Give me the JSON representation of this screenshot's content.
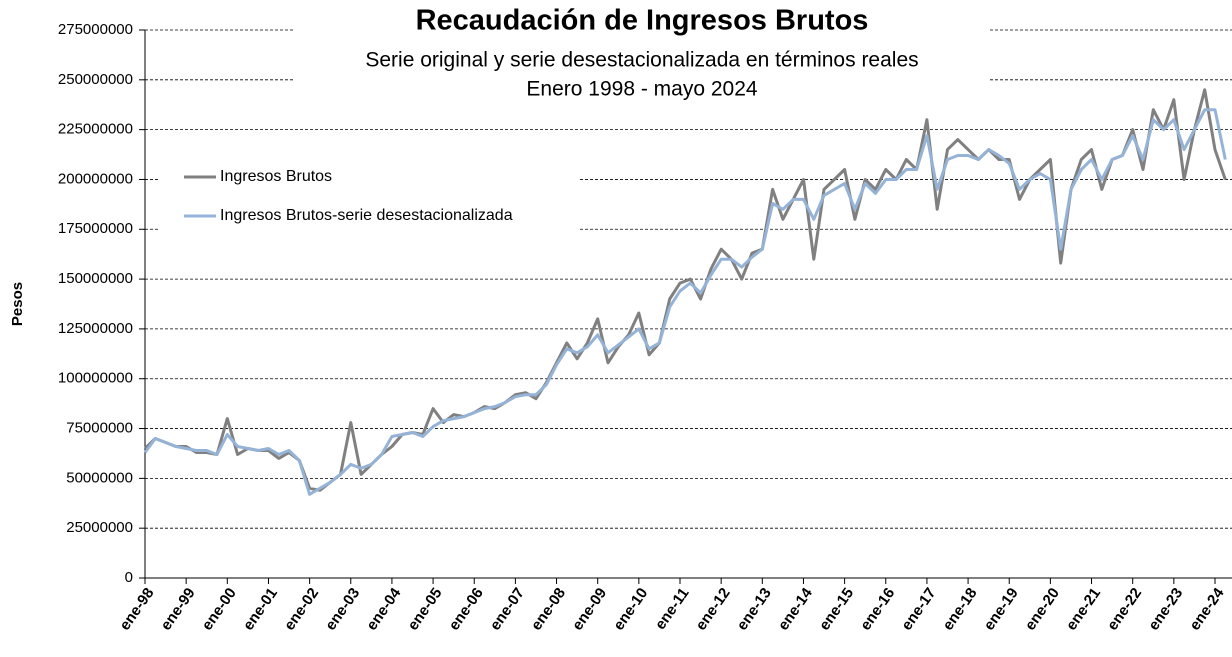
{
  "chart_data": {
    "type": "line",
    "title": "Recaudación de Ingresos Brutos",
    "subtitle": [
      "Serie original y serie desestacionalizada  en términos reales",
      "Enero 1998 - mayo 2024"
    ],
    "y_label": "Pesos",
    "categories": [
      "ene-98",
      null,
      null,
      null,
      "ene-99",
      null,
      null,
      null,
      "ene-00",
      null,
      null,
      null,
      "ene-01",
      null,
      null,
      null,
      "ene-02",
      null,
      null,
      null,
      "ene-03",
      null,
      null,
      null,
      "ene-04",
      null,
      null,
      null,
      "ene-05",
      null,
      null,
      null,
      "ene-06",
      null,
      null,
      null,
      "ene-07",
      null,
      null,
      null,
      "ene-08",
      null,
      null,
      null,
      "ene-09",
      null,
      null,
      null,
      "ene-10",
      null,
      null,
      null,
      "ene-11",
      null,
      null,
      null,
      "ene-12",
      null,
      null,
      null,
      "ene-13",
      null,
      null,
      null,
      "ene-14",
      null,
      null,
      null,
      "ene-15",
      null,
      null,
      null,
      "ene-16",
      null,
      null,
      null,
      "ene-17",
      null,
      null,
      null,
      "ene-18",
      null,
      null,
      null,
      "ene-19",
      null,
      null,
      null,
      "ene-20",
      null,
      null,
      null,
      "ene-21",
      null,
      null,
      null,
      "ene-22",
      null,
      null,
      null,
      "ene-23",
      null,
      null,
      null,
      "ene-24",
      null
    ],
    "series": [
      {
        "name": "Ingresos Brutos",
        "color": "#808080",
        "values": [
          65000000,
          70000000,
          68000000,
          66000000,
          66000000,
          63000000,
          63000000,
          62000000,
          80000000,
          62000000,
          65000000,
          64000000,
          64000000,
          60000000,
          63000000,
          59000000,
          45000000,
          44000000,
          48000000,
          52000000,
          78000000,
          52000000,
          57000000,
          62000000,
          66000000,
          72000000,
          73000000,
          72000000,
          85000000,
          78000000,
          82000000,
          81000000,
          83000000,
          86000000,
          85000000,
          88000000,
          92000000,
          93000000,
          90000000,
          98000000,
          108000000,
          118000000,
          110000000,
          118000000,
          130000000,
          108000000,
          116000000,
          122000000,
          133000000,
          112000000,
          118000000,
          140000000,
          148000000,
          150000000,
          140000000,
          155000000,
          165000000,
          160000000,
          150000000,
          163000000,
          165000000,
          195000000,
          180000000,
          190000000,
          200000000,
          160000000,
          195000000,
          200000000,
          205000000,
          180000000,
          200000000,
          195000000,
          205000000,
          200000000,
          210000000,
          205000000,
          230000000,
          185000000,
          215000000,
          220000000,
          215000000,
          210000000,
          215000000,
          210000000,
          210000000,
          190000000,
          200000000,
          205000000,
          210000000,
          158000000,
          195000000,
          210000000,
          215000000,
          195000000,
          210000000,
          212000000,
          225000000,
          205000000,
          235000000,
          225000000,
          240000000,
          200000000,
          225000000,
          245000000,
          215000000,
          200000000
        ]
      },
      {
        "name": "Ingresos Brutos-serie desestacionalizada",
        "color": "#95b3d7",
        "values": [
          63000000,
          70000000,
          68000000,
          66000000,
          65000000,
          64000000,
          64000000,
          62000000,
          72000000,
          66000000,
          65000000,
          64000000,
          65000000,
          62000000,
          64000000,
          59000000,
          42000000,
          45000000,
          48000000,
          52000000,
          57000000,
          55000000,
          57000000,
          62000000,
          71000000,
          72000000,
          73000000,
          71000000,
          76000000,
          79000000,
          80000000,
          81000000,
          83000000,
          85000000,
          86000000,
          88000000,
          91000000,
          92000000,
          92000000,
          97000000,
          107000000,
          115000000,
          113000000,
          116000000,
          122000000,
          113000000,
          117000000,
          121000000,
          125000000,
          115000000,
          118000000,
          136000000,
          144000000,
          148000000,
          143000000,
          152000000,
          160000000,
          160000000,
          156000000,
          161000000,
          165000000,
          188000000,
          185000000,
          190000000,
          190000000,
          180000000,
          192000000,
          195000000,
          198000000,
          185000000,
          198000000,
          193000000,
          200000000,
          200000000,
          205000000,
          205000000,
          222000000,
          195000000,
          210000000,
          212000000,
          212000000,
          210000000,
          215000000,
          212000000,
          208000000,
          195000000,
          200000000,
          203000000,
          200000000,
          165000000,
          195000000,
          205000000,
          210000000,
          200000000,
          210000000,
          212000000,
          222000000,
          210000000,
          230000000,
          225000000,
          230000000,
          215000000,
          225000000,
          235000000,
          235000000,
          210000000
        ]
      }
    ],
    "ylim": [
      0,
      275000000
    ],
    "yticks": [
      0,
      25000000,
      50000000,
      75000000,
      100000000,
      125000000,
      150000000,
      175000000,
      200000000,
      225000000,
      250000000,
      275000000
    ],
    "grid": true
  }
}
